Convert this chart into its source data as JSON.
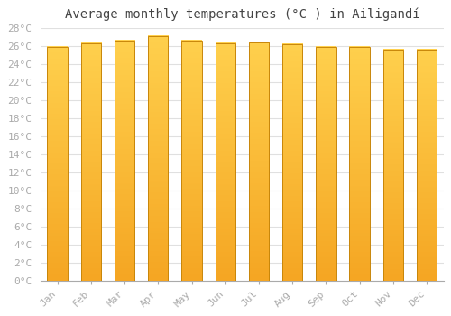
{
  "title": "Average monthly temperatures (°C ) in Ailigandí",
  "months": [
    "Jan",
    "Feb",
    "Mar",
    "Apr",
    "May",
    "Jun",
    "Jul",
    "Aug",
    "Sep",
    "Oct",
    "Nov",
    "Dec"
  ],
  "values": [
    25.9,
    26.3,
    26.6,
    27.1,
    26.6,
    26.3,
    26.4,
    26.2,
    25.9,
    25.9,
    25.6,
    25.6
  ],
  "bar_color_bottom": "#F5A623",
  "bar_color_top": "#FFD04D",
  "bar_edge_color": "#C8860A",
  "ylim": [
    0,
    28
  ],
  "yticks": [
    0,
    2,
    4,
    6,
    8,
    10,
    12,
    14,
    16,
    18,
    20,
    22,
    24,
    26,
    28
  ],
  "ytick_labels": [
    "0°C",
    "2°C",
    "4°C",
    "6°C",
    "8°C",
    "10°C",
    "12°C",
    "14°C",
    "16°C",
    "18°C",
    "20°C",
    "22°C",
    "24°C",
    "26°C",
    "28°C"
  ],
  "background_color": "#ffffff",
  "grid_color": "#e0e0e0",
  "title_fontsize": 10,
  "tick_fontsize": 8,
  "tick_color": "#aaaaaa",
  "bar_width": 0.6
}
